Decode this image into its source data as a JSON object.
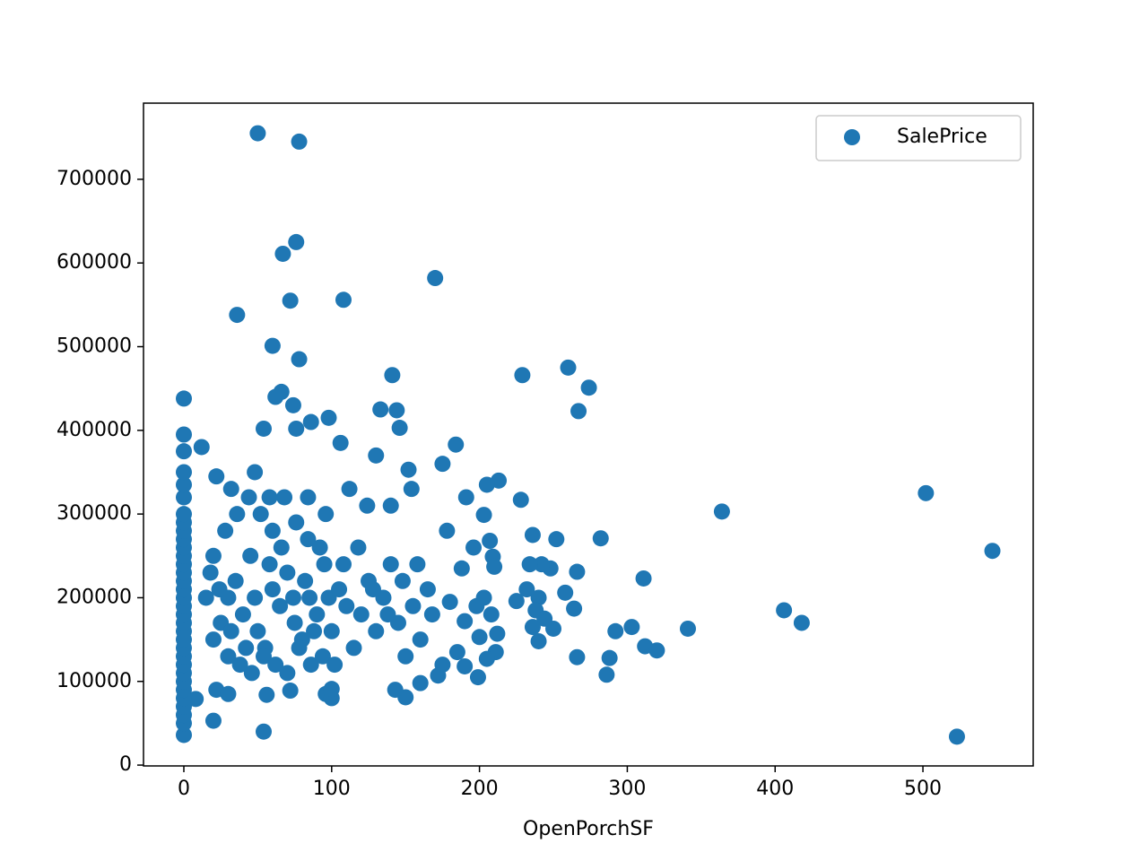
{
  "chart_data": {
    "type": "scatter",
    "x_label": "OpenPorchSF",
    "xlim": [
      -27.3,
      574.6
    ],
    "ylim": [
      -1000,
      791000
    ],
    "xticks": [
      0,
      100,
      200,
      300,
      400,
      500
    ],
    "yticks": [
      0,
      100000,
      200000,
      300000,
      400000,
      500000,
      600000,
      700000
    ],
    "legend": "upper right",
    "x": [
      50,
      78,
      76,
      67,
      72,
      108,
      36,
      170,
      60,
      78,
      229,
      141,
      260,
      274,
      267,
      133,
      144,
      146,
      66,
      62,
      74,
      12,
      98,
      86,
      54,
      76,
      106,
      184,
      130,
      175,
      152,
      364,
      502,
      547,
      523,
      406,
      418,
      341,
      311,
      303,
      292,
      282,
      266,
      264,
      266,
      288,
      286,
      312,
      320,
      228,
      236,
      252,
      258,
      248,
      242,
      250,
      240,
      213,
      205,
      191,
      203,
      207,
      196,
      209,
      210,
      188,
      180,
      190,
      198,
      203,
      208,
      212,
      200,
      211,
      205,
      199,
      190,
      185,
      175,
      172,
      160,
      150,
      143,
      54,
      20,
      8,
      22,
      30,
      56,
      72,
      96,
      100,
      100,
      236,
      232,
      225,
      240,
      238,
      244,
      234,
      0,
      0,
      0,
      0,
      0,
      0,
      0,
      0,
      0,
      0,
      0,
      0,
      0,
      0,
      0,
      0,
      0,
      0,
      0,
      0,
      0,
      0,
      0,
      0,
      0,
      0,
      0,
      0,
      0,
      0,
      0,
      0,
      0,
      20,
      25,
      30,
      35,
      40,
      45,
      50,
      55,
      60,
      65,
      70,
      75,
      80,
      85,
      90,
      95,
      100,
      105,
      110,
      115,
      120,
      125,
      130,
      135,
      140,
      145,
      150,
      155,
      160,
      165,
      20,
      28,
      36,
      44,
      52,
      60,
      68,
      76,
      84,
      92,
      30,
      38,
      46,
      54,
      62,
      70,
      78,
      86,
      94,
      102,
      15,
      18,
      24,
      32,
      42,
      48,
      58,
      66,
      74,
      82,
      88,
      98,
      108,
      118,
      128,
      138,
      148,
      158,
      168,
      178,
      22,
      32,
      48,
      58,
      84,
      96,
      112,
      124,
      140,
      154
    ],
    "series": [
      {
        "name": "SalePrice",
        "color": "#1f77b4",
        "values": [
          755000,
          745000,
          625000,
          611000,
          555000,
          556000,
          538000,
          582000,
          501000,
          485000,
          466000,
          466000,
          475000,
          451000,
          423000,
          425000,
          424000,
          403000,
          446000,
          440000,
          430000,
          380000,
          415000,
          410000,
          402000,
          402000,
          385000,
          383000,
          370000,
          360000,
          353000,
          303000,
          325000,
          256000,
          34000,
          185000,
          170000,
          163000,
          223000,
          165000,
          160000,
          271000,
          231000,
          187000,
          129000,
          128000,
          108000,
          142000,
          137000,
          317000,
          275000,
          270000,
          206000,
          235000,
          240000,
          163000,
          148000,
          340000,
          335000,
          320000,
          299000,
          268000,
          260000,
          249000,
          237000,
          235000,
          195000,
          172000,
          190000,
          200000,
          180000,
          157000,
          153000,
          135000,
          127000,
          105000,
          118000,
          135000,
          120000,
          107000,
          98000,
          81000,
          90000,
          40000,
          53000,
          79000,
          90000,
          85000,
          84000,
          89000,
          85000,
          80000,
          91000,
          165000,
          210000,
          196000,
          200000,
          185000,
          175000,
          240000,
          36000,
          50000,
          60000,
          70000,
          80000,
          90000,
          100000,
          110000,
          120000,
          130000,
          140000,
          150000,
          160000,
          170000,
          180000,
          190000,
          200000,
          210000,
          220000,
          230000,
          240000,
          250000,
          260000,
          270000,
          280000,
          290000,
          300000,
          320000,
          335000,
          350000,
          375000,
          395000,
          438000,
          150000,
          170000,
          200000,
          220000,
          180000,
          250000,
          160000,
          140000,
          210000,
          190000,
          230000,
          170000,
          150000,
          200000,
          180000,
          240000,
          160000,
          210000,
          190000,
          140000,
          180000,
          220000,
          160000,
          200000,
          240000,
          170000,
          130000,
          190000,
          150000,
          210000,
          250000,
          280000,
          300000,
          320000,
          300000,
          280000,
          320000,
          290000,
          270000,
          260000,
          130000,
          120000,
          110000,
          130000,
          120000,
          110000,
          140000,
          120000,
          130000,
          120000,
          200000,
          230000,
          210000,
          160000,
          140000,
          200000,
          240000,
          260000,
          200000,
          220000,
          160000,
          200000,
          240000,
          260000,
          210000,
          180000,
          220000,
          240000,
          180000,
          280000,
          345000,
          330000,
          350000,
          320000,
          320000,
          300000,
          330000,
          310000,
          310000,
          330000
        ]
      }
    ]
  }
}
